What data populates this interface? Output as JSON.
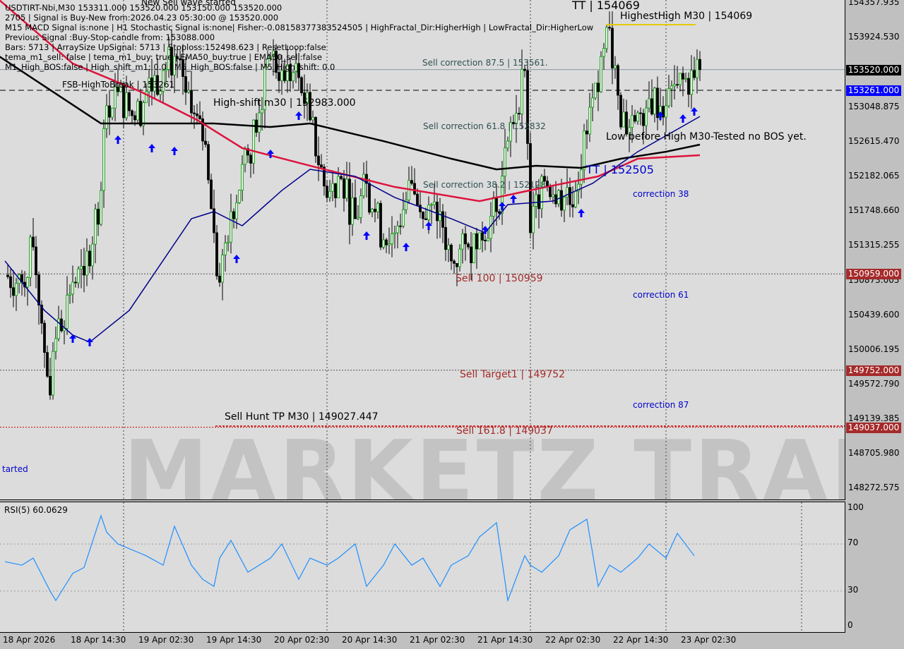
{
  "header": {
    "line1": "USDTIRT-Nbi,M30  153311.000 153520.000 153150.000 153520.000",
    "line2": "2705 | Signal is Buy-New from:2026.04.23 05:30:00 @ 153520.000",
    "line3": "M15 MACD Signal is:none | H1 Stochastic Signal is:none| Fisher:-0.0815837738352450​5 | HighFractal_Dir:HigherHigh | LowFractal_Dir:HigherLow",
    "line4": "Previous Signal :Buy-Stop-candle from: 153088.000",
    "line5": "Bars: 5713 | ArraySize UpSignal: 5713 | Stoploss:152498.623 | ResetLoop:false",
    "line6": "tema_m1_sell: false | tema_m1_buy: true | EMA50_buy:true | EMA50_sell:false",
    "line7": "M1_High_BOS:false | High_shift_m1: 0.0 | M5_High_BOS:false | M5_High_shift: 0.0",
    "top_note": "New Sell wave started"
  },
  "labels": {
    "sell_corr_875": "Sell correction 87.5 | 153561.",
    "sell_corr_618": "Sell correction 61.8 | 152832",
    "sell_corr_382": "Sell correction 38.2 | 152128",
    "sell_100": "Sell 100 | 150959",
    "sell_target1": "Sell Target1 | 149752",
    "sell_1618": "Sell 161.8 | 149037",
    "sell_hunt": "Sell Hunt TP M30 | 149027.447",
    "high_shift": "High-shift m30 | 152983.000",
    "fsb": "FSB-HighToBreak | 153261",
    "highest_high": "HighestHigh   M30 | 154069",
    "tt_high": "TT | 154069",
    "tt_low": "TT | 152505",
    "low_before_high": "Low before High  M30-Tested no BOS yet.",
    "corr38": "correction 38",
    "corr61": "correction 61",
    "corr87": "correction 87",
    "started": "tarted",
    "watermark": "MARKETZ TRADE"
  },
  "price_axis": {
    "ticks": [
      "154357.935",
      "153924.530",
      "153048.875",
      "152615.470",
      "152182.065",
      "151748.660",
      "151315.255",
      "150873.005",
      "150439.600",
      "150006.195",
      "149572.790",
      "149139.385",
      "148705.980",
      "148272.575"
    ],
    "badges": [
      {
        "value": "153520.000",
        "color": "#000000"
      },
      {
        "value": "153261.000",
        "color": "#0000ff"
      },
      {
        "value": "150959.000",
        "color": "#a52a2a"
      },
      {
        "value": "149752.000",
        "color": "#a52a2a"
      },
      {
        "value": "149037.000",
        "color": "#a52a2a"
      }
    ]
  },
  "time_axis": [
    "18 Apr 2026",
    "18 Apr 14:30",
    "19 Apr 02:30",
    "19 Apr 14:30",
    "20 Apr 02:30",
    "20 Apr 14:30",
    "21 Apr 02:30",
    "21 Apr 14:30",
    "22 Apr 02:30",
    "22 Apr 14:30",
    "23 Apr 02:30"
  ],
  "rsi": {
    "title": "RSI(5) 60.0629",
    "ticks": [
      "100",
      "70",
      "30",
      "0"
    ],
    "color": "#1e90ff"
  },
  "colors": {
    "ema_black": "#000000",
    "ema_red": "#dc143c",
    "ema_blue": "#00008b",
    "buy_arrow": "#0000ff",
    "sell_text": "#a52a2a",
    "correction_text": "#0000cd"
  },
  "chart_data": {
    "type": "candlestick",
    "symbol": "USDTIRT-Nbi",
    "timeframe": "M30",
    "ylim": [
      148100,
      154400
    ],
    "price_path": [
      [
        "2026-04-17 22:30",
        150944
      ],
      [
        "2026-04-18 01:30",
        150855
      ],
      [
        "2026-04-18 03:30",
        151297
      ],
      [
        "2026-04-18 06:30",
        149440
      ],
      [
        "2026-04-18 07:30",
        150148
      ],
      [
        "2026-04-18 10:30",
        150855
      ],
      [
        "2026-04-18 12:30",
        150944
      ],
      [
        "2026-04-18 15:30",
        152005
      ],
      [
        "2026-04-18 16:30",
        153067
      ],
      [
        "2026-04-18 18:30",
        153244
      ],
      [
        "2026-04-18 21:30",
        152890
      ],
      [
        "2026-04-18 23:30",
        153244
      ],
      [
        "2026-04-19 02:30",
        153509
      ],
      [
        "2026-04-19 04:30",
        153686
      ],
      [
        "2026-04-19 07:30",
        152978
      ],
      [
        "2026-04-19 09:30",
        152624
      ],
      [
        "2026-04-19 11:30",
        151475
      ],
      [
        "2026-04-19 12:30",
        150855
      ],
      [
        "2026-04-19 14:30",
        151740
      ],
      [
        "2026-04-19 17:30",
        152448
      ],
      [
        "2026-04-19 19:30",
        152978
      ],
      [
        "2026-04-19 21:30",
        153686
      ],
      [
        "2026-04-19 23:30",
        153509
      ],
      [
        "2026-04-20 02:30",
        153420
      ],
      [
        "2026-04-20 04:30",
        152890
      ],
      [
        "2026-04-20 07:30",
        151917
      ],
      [
        "2026-04-20 09:30",
        152182
      ],
      [
        "2026-04-20 12:30",
        151651
      ],
      [
        "2026-04-20 14:30",
        152094
      ],
      [
        "2026-04-20 17:30",
        151386
      ],
      [
        "2026-04-20 19:30",
        151475
      ],
      [
        "2026-04-20 22:30",
        152094
      ],
      [
        "2026-04-21 00:30",
        151651
      ],
      [
        "2026-04-21 03:30",
        151740
      ],
      [
        "2026-04-21 05:30",
        151121
      ],
      [
        "2026-04-21 08:30",
        151297
      ],
      [
        "2026-04-21 10:30",
        151475
      ],
      [
        "2026-04-21 13:30",
        151740
      ],
      [
        "2026-04-21 15:30",
        152624
      ],
      [
        "2026-04-21 18:30",
        153509
      ],
      [
        "2026-04-21 19:30",
        151475
      ],
      [
        "2026-04-21 21:30",
        152182
      ],
      [
        "2026-04-22 00:30",
        152005
      ],
      [
        "2026-04-22 02:30",
        151828
      ],
      [
        "2026-04-22 05:30",
        152713
      ],
      [
        "2026-04-22 07:30",
        153244
      ],
      [
        "2026-04-22 09:30",
        154040
      ],
      [
        "2026-04-22 11:30",
        152801
      ],
      [
        "2026-04-22 14:30",
        152978
      ],
      [
        "2026-04-22 16:30",
        153155
      ],
      [
        "2026-04-22 19:30",
        153067
      ],
      [
        "2026-04-22 21:30",
        153332
      ],
      [
        "2026-04-23 00:30",
        153420
      ],
      [
        "2026-04-23 01:30",
        153520
      ]
    ],
    "ema_black": [
      [
        "2026-04-17 21:30",
        153686
      ],
      [
        "2026-04-18 15:30",
        152845
      ],
      [
        "2026-04-19 11:30",
        152845
      ],
      [
        "2026-04-19 21:30",
        152801
      ],
      [
        "2026-04-20 04:30",
        152845
      ],
      [
        "2026-04-20 17:30",
        152624
      ],
      [
        "2026-04-21 05:30",
        152403
      ],
      [
        "2026-04-21 13:30",
        152270
      ],
      [
        "2026-04-21 20:30",
        152315
      ],
      [
        "2026-04-22 04:30",
        152288
      ],
      [
        "2026-04-22 11:30",
        152403
      ],
      [
        "2026-04-22 19:30",
        152491
      ],
      [
        "2026-04-23 01:30",
        152580
      ]
    ],
    "ema_red": [
      [
        "2026-04-17 21:30",
        154393
      ],
      [
        "2026-04-18 10:30",
        153597
      ],
      [
        "2026-04-18 22:30",
        153244
      ],
      [
        "2026-04-19 08:30",
        152890
      ],
      [
        "2026-04-19 16:30",
        152536
      ],
      [
        "2026-04-20 04:30",
        152315
      ],
      [
        "2026-04-20 19:30",
        152049
      ],
      [
        "2026-04-21 10:30",
        151872
      ],
      [
        "2026-04-21 20:30",
        152023
      ],
      [
        "2026-04-22 07:30",
        152182
      ],
      [
        "2026-04-22 14:30",
        152403
      ],
      [
        "2026-04-23 01:30",
        152447
      ]
    ],
    "ema_blue": [
      [
        "2026-04-17 22:30",
        151121
      ],
      [
        "2026-04-18 05:30",
        150501
      ],
      [
        "2026-04-18 10:30",
        150192
      ],
      [
        "2026-04-18 13:30",
        150103
      ],
      [
        "2026-04-18 20:30",
        150501
      ],
      [
        "2026-04-19 07:30",
        151651
      ],
      [
        "2026-04-19 11:30",
        151740
      ],
      [
        "2026-04-19 16:30",
        151563
      ],
      [
        "2026-04-19 23:30",
        152005
      ],
      [
        "2026-04-20 04:30",
        152270
      ],
      [
        "2026-04-20 12:30",
        152182
      ],
      [
        "2026-04-20 19:30",
        151917
      ],
      [
        "2026-04-21 05:30",
        151651
      ],
      [
        "2026-04-21 11:30",
        151475
      ],
      [
        "2026-04-21 15:30",
        151828
      ],
      [
        "2026-04-21 23:30",
        151872
      ],
      [
        "2026-04-22 06:30",
        152094
      ],
      [
        "2026-04-22 14:30",
        152491
      ],
      [
        "2026-04-23 01:30",
        152933
      ]
    ],
    "buy_arrows": [
      [
        "2026-04-18 10:30",
        150148
      ],
      [
        "2026-04-18 13:30",
        150103
      ],
      [
        "2026-04-18 18:30",
        152642
      ],
      [
        "2026-04-19 00:30",
        152536
      ],
      [
        "2026-04-19 04:30",
        152500
      ],
      [
        "2026-04-19 15:30",
        151147
      ],
      [
        "2026-04-19 21:30",
        152465
      ],
      [
        "2026-04-20 02:30",
        152943
      ],
      [
        "2026-04-20 14:30",
        151439
      ],
      [
        "2026-04-20 21:30",
        151297
      ],
      [
        "2026-04-21 01:30",
        151562
      ],
      [
        "2026-04-21 11:30",
        151509
      ],
      [
        "2026-04-21 14:30",
        151810
      ],
      [
        "2026-04-21 16:30",
        151899
      ],
      [
        "2026-04-22 04:30",
        151722
      ],
      [
        "2026-04-22 18:30",
        152943
      ],
      [
        "2026-04-22 22:30",
        152907
      ],
      [
        "2026-04-23 00:30",
        152996
      ]
    ],
    "levels": [
      {
        "price": 153520,
        "style": "solid",
        "color": "#708090"
      },
      {
        "price": 153261,
        "style": "dashed",
        "color": "#000000"
      },
      {
        "price": 150959,
        "style": "dotted",
        "color": "#555555"
      },
      {
        "price": 149752,
        "style": "dotted",
        "color": "#555555"
      },
      {
        "price": 149037,
        "style": "dotted",
        "color": "#cc0000"
      }
    ],
    "rsi_values": [
      55,
      52,
      58,
      30,
      22,
      45,
      50,
      94,
      80,
      70,
      64,
      60,
      52,
      85,
      52,
      40,
      34,
      58,
      73,
      46,
      52,
      58,
      70,
      40,
      58,
      52,
      58,
      70,
      34,
      52,
      70,
      52,
      58,
      34,
      52,
      60,
      76,
      88,
      22,
      60,
      52,
      46,
      60,
      82,
      91,
      34,
      52,
      46,
      58,
      70,
      58,
      79,
      60
    ],
    "rsi_ylim": [
      0,
      100
    ]
  }
}
